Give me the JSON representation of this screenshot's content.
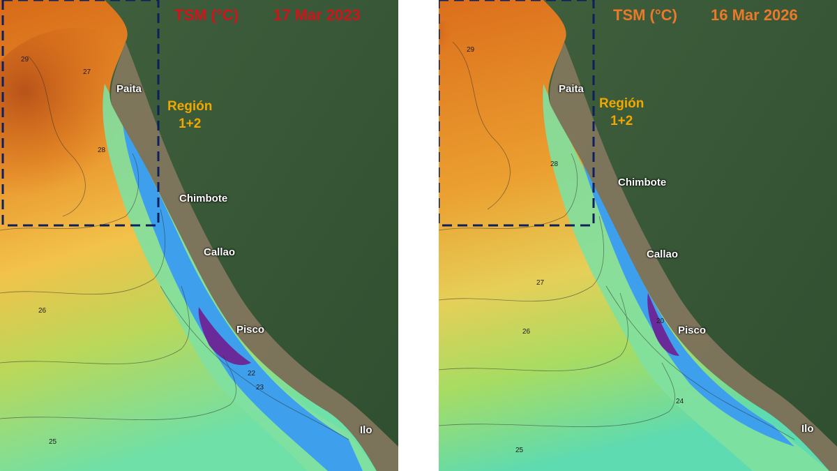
{
  "colors": {
    "land": "#3a5a3a",
    "andes": "#8a7a62",
    "warm": "#e2781e",
    "cool": "#3a8de8",
    "upwelling": "#6a2a9a",
    "region_box": "#0d1f5c",
    "title_left": "#d0141c",
    "title_right": "#ea7a2a",
    "region_label": "#f0a800"
  },
  "panels": [
    {
      "variable_label": "TSM (°C)",
      "date": "17 Mar 2023",
      "region_label_line1": "Región",
      "region_label_line2": "1+2",
      "cities": {
        "paita": "Paita",
        "chimbote": "Chimbote",
        "callao": "Callao",
        "pisco": "Pisco",
        "ilo": "Ilo"
      },
      "contours": {
        "c29": "29",
        "c28": "28",
        "c27": "27",
        "c26": "26",
        "c25": "25",
        "c23": "23",
        "c22": "22"
      }
    },
    {
      "variable_label": "TSM (°C)",
      "date": "16 Mar 2026",
      "region_label_line1": "Región",
      "region_label_line2": "1+2",
      "cities": {
        "paita": "Paita",
        "chimbote": "Chimbote",
        "callao": "Callao",
        "pisco": "Pisco",
        "ilo": "Ilo"
      },
      "contours": {
        "c29": "29",
        "c28": "28",
        "c27": "27",
        "c26": "26",
        "c25": "25",
        "c24": "24",
        "c20": "20"
      }
    }
  ]
}
